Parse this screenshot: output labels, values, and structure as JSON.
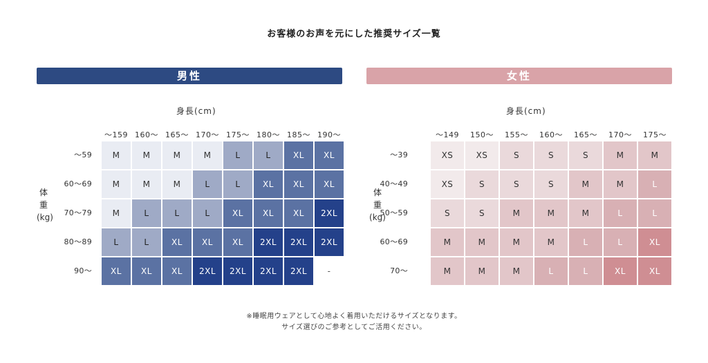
{
  "title": "お客様のお声を元にした推奨サイズ一覧",
  "men": {
    "banner": "男性",
    "height_label": "身長(cm)",
    "weight_label": [
      "体",
      "重",
      "(kg)"
    ],
    "columns": [
      "～159",
      "160～",
      "165～",
      "170～",
      "175～",
      "180～",
      "185～",
      "190～"
    ],
    "rows": [
      {
        "label": "～59",
        "cells": [
          "M",
          "M",
          "M",
          "M",
          "L",
          "L",
          "XL",
          "XL"
        ]
      },
      {
        "label": "60～69",
        "cells": [
          "M",
          "M",
          "M",
          "L",
          "L",
          "XL",
          "XL",
          "XL"
        ]
      },
      {
        "label": "70～79",
        "cells": [
          "M",
          "L",
          "L",
          "L",
          "XL",
          "XL",
          "XL",
          "2XL"
        ]
      },
      {
        "label": "80～89",
        "cells": [
          "L",
          "L",
          "XL",
          "XL",
          "XL",
          "2XL",
          "2XL",
          "2XL"
        ]
      },
      {
        "label": "90～",
        "cells": [
          "XL",
          "XL",
          "XL",
          "2XL",
          "2XL",
          "2XL",
          "2XL",
          "-"
        ]
      }
    ],
    "color_scale": {
      "M": "#e9ecf3",
      "L": "#9faac6",
      "XL": "#5b72a3",
      "2XL": "#24418a",
      "-": "#ffffff"
    }
  },
  "women": {
    "banner": "女性",
    "height_label": "身長(cm)",
    "weight_label": [
      "体",
      "重",
      "(kg)"
    ],
    "columns": [
      "～149",
      "150～",
      "155～",
      "160～",
      "165～",
      "170～",
      "175～"
    ],
    "rows": [
      {
        "label": "～39",
        "cells": [
          "XS",
          "XS",
          "S",
          "S",
          "S",
          "M",
          "M"
        ]
      },
      {
        "label": "40～49",
        "cells": [
          "XS",
          "S",
          "S",
          "S",
          "M",
          "M",
          "L"
        ]
      },
      {
        "label": "50～59",
        "cells": [
          "S",
          "S",
          "M",
          "M",
          "M",
          "L",
          "L"
        ]
      },
      {
        "label": "60～69",
        "cells": [
          "M",
          "M",
          "M",
          "M",
          "L",
          "L",
          "XL"
        ]
      },
      {
        "label": "70～",
        "cells": [
          "M",
          "M",
          "M",
          "L",
          "L",
          "XL",
          "XL"
        ]
      }
    ],
    "color_scale": {
      "XS": "#f2eaeb",
      "S": "#ead9db",
      "M": "#e2c6c9",
      "L": "#d8b0b4",
      "XL": "#cf8e93"
    }
  },
  "notes": [
    "※睡眠用ウェアとして心地よく着用いただけるサイズとなります。",
    "サイズ選びのご参考としてご活用ください。"
  ]
}
